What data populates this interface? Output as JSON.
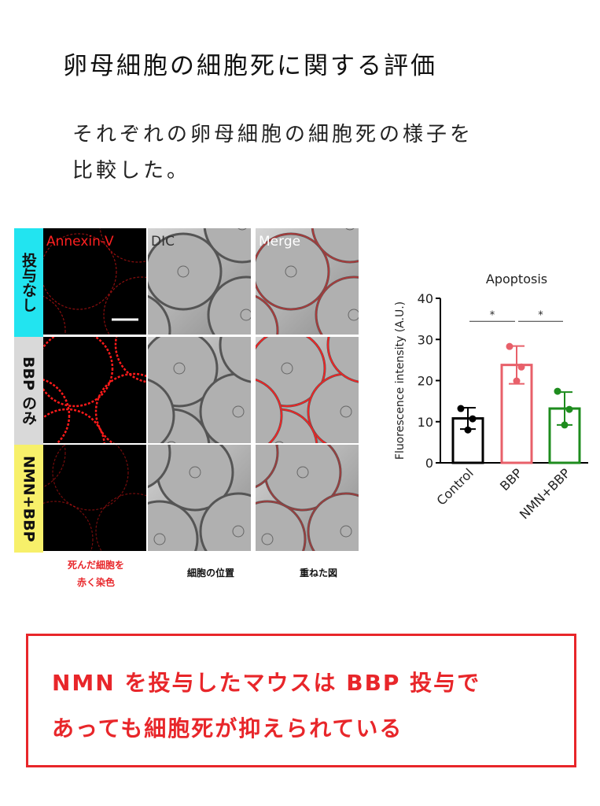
{
  "header": {
    "title": "卵母細胞の細胞死に関する評価"
  },
  "description": {
    "lines": [
      "それぞれの卵母細胞の細胞死の様子を",
      "比較した。"
    ]
  },
  "microscopy": {
    "columns": [
      "Annexin-V",
      "DIC",
      "Merge"
    ],
    "rows": [
      "投与なし",
      "BBP のみ",
      "NMN+BBP"
    ],
    "captions": [
      [
        "死んだ細胞を",
        "赤く染色"
      ],
      [
        "細胞の位置"
      ],
      [
        "重ねた図"
      ]
    ]
  },
  "chart_data": {
    "type": "bar",
    "title": "Apoptosis",
    "y_label": "Fluorescence intensity (A.U.)",
    "categories": [
      "Control",
      "BBP",
      "NMN+BBP"
    ],
    "values": [
      10.8,
      23.8,
      13.2
    ],
    "errors": [
      2.6,
      4.6,
      4.0
    ],
    "points": [
      [
        13.2,
        10.7,
        8.0
      ],
      [
        28.3,
        23.3,
        19.9
      ],
      [
        17.4,
        13.0,
        9.2
      ]
    ],
    "colors": [
      "#000000",
      "#e8606a",
      "#1e8c1e"
    ],
    "ylim": [
      0,
      40
    ],
    "yticks": [
      0,
      10,
      20,
      30,
      40
    ],
    "annotations": [
      {
        "text": "*",
        "between": [
          0,
          1
        ],
        "y": 34.4
      },
      {
        "text": "*",
        "between": [
          1,
          2
        ],
        "y": 34.4
      }
    ]
  },
  "conclusion": {
    "lines": [
      "NMN を投与したマウスは BBP 投与で",
      "あっても細胞死が抑えられている"
    ]
  }
}
